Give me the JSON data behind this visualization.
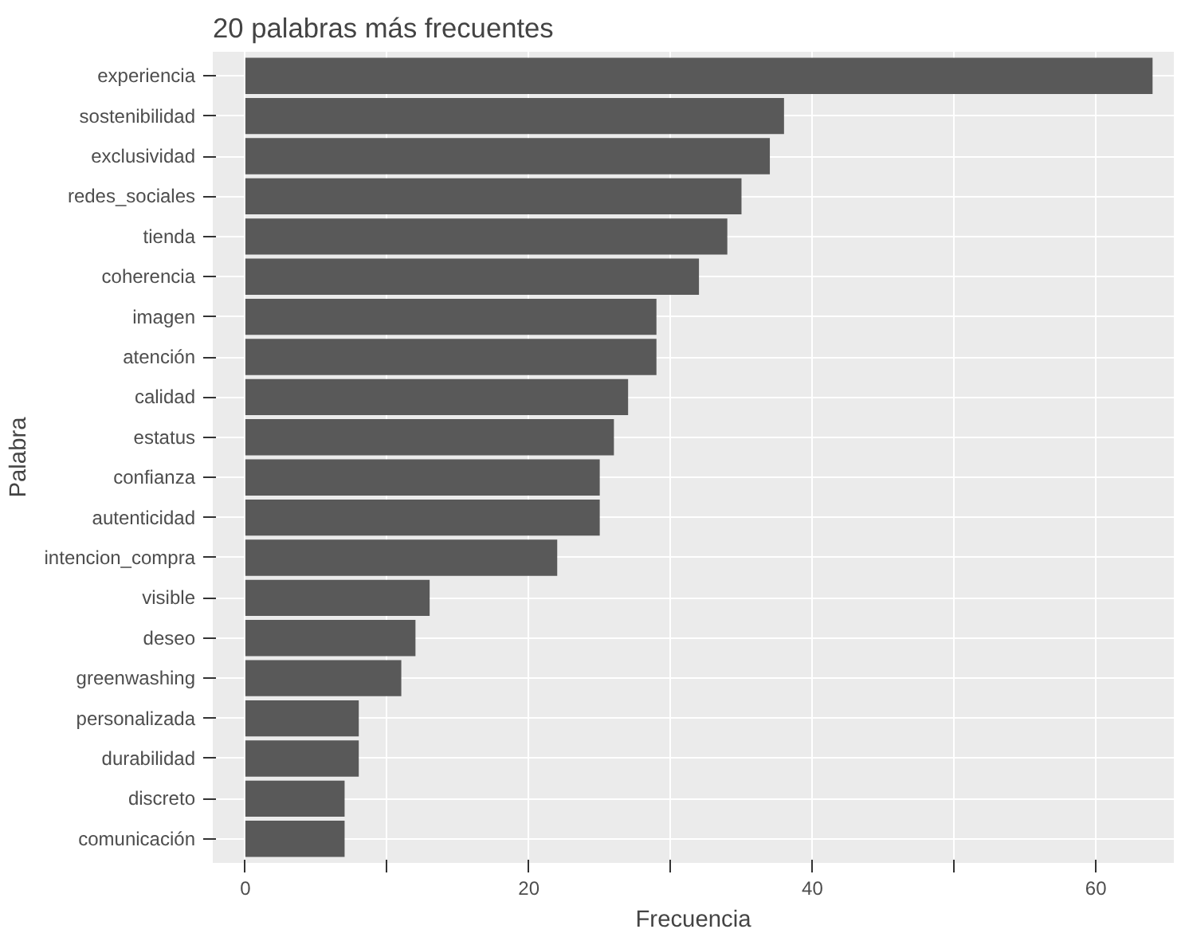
{
  "chart_data": {
    "type": "bar",
    "orientation": "horizontal",
    "title": "20 palabras más frecuentes",
    "xlabel": "Frecuencia",
    "ylabel": "Palabra",
    "categories": [
      "experiencia",
      "sostenibilidad",
      "exclusividad",
      "redes_sociales",
      "tienda",
      "coherencia",
      "imagen",
      "atención",
      "calidad",
      "estatus",
      "confianza",
      "autenticidad",
      "intencion_compra",
      "visible",
      "deseo",
      "greenwashing",
      "personalizada",
      "durabilidad",
      "discreto",
      "comunicación"
    ],
    "values": [
      64,
      38,
      37,
      35,
      34,
      32,
      29,
      29,
      27,
      26,
      25,
      25,
      22,
      13,
      12,
      11,
      8,
      8,
      7,
      7
    ],
    "color": "#595959",
    "xlim": [
      -2.3,
      65.5
    ],
    "xticks": [
      0,
      {
        "value": 10,
        "label": null
      },
      20,
      {
        "value": 30,
        "label": null
      },
      40,
      {
        "value": 50,
        "label": null
      },
      60
    ],
    "grid": true
  }
}
